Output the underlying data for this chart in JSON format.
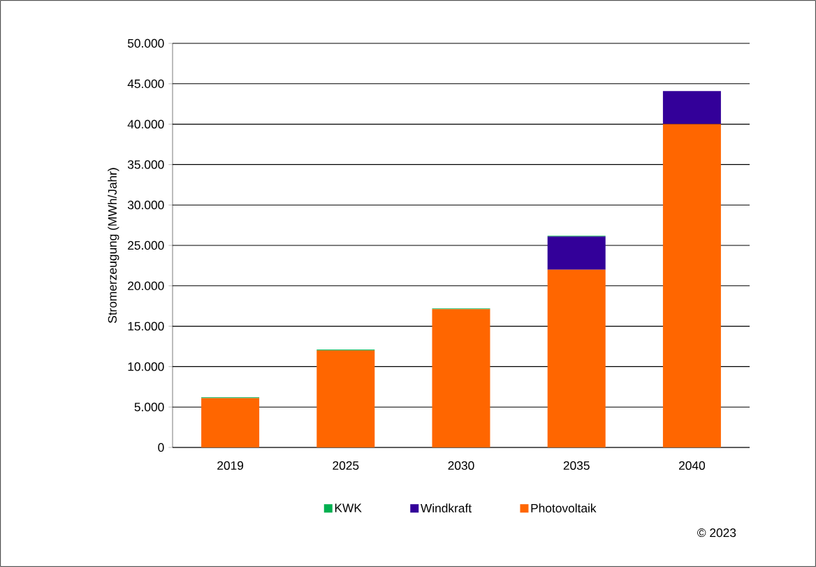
{
  "chart_data": {
    "type": "bar",
    "stacked": true,
    "ylabel": "Stromerzeugung (MWh/Jahr)",
    "categories": [
      "2019",
      "2025",
      "2030",
      "2035",
      "2040"
    ],
    "series": [
      {
        "name": "Photovoltaik",
        "color": "#ff6600",
        "values": [
          6100,
          12000,
          17100,
          22000,
          40000
        ]
      },
      {
        "name": "Windkraft",
        "color": "#330099",
        "values": [
          0,
          0,
          0,
          4100,
          4100
        ]
      },
      {
        "name": "KWK",
        "color": "#00b050",
        "values": [
          100,
          100,
          100,
          100,
          0
        ]
      }
    ],
    "ylim": [
      0,
      50000
    ],
    "yticks": [
      0,
      {
        "value": 5000,
        "label": "5.000"
      },
      {
        "value": 10000,
        "label": "10.000"
      },
      {
        "value": 15000,
        "label": "15.000"
      },
      {
        "value": 20000,
        "label": "20.000"
      },
      {
        "value": 25000,
        "label": "25.000"
      },
      {
        "value": 30000,
        "label": "30.000"
      },
      {
        "value": 35000,
        "label": "35.000"
      },
      {
        "value": 40000,
        "label": "40.000"
      },
      {
        "value": 45000,
        "label": "45.000"
      },
      {
        "value": 50000,
        "label": "50.000"
      }
    ],
    "grid": "y",
    "legend": "bottom",
    "annotations": [
      "© 2023"
    ]
  }
}
